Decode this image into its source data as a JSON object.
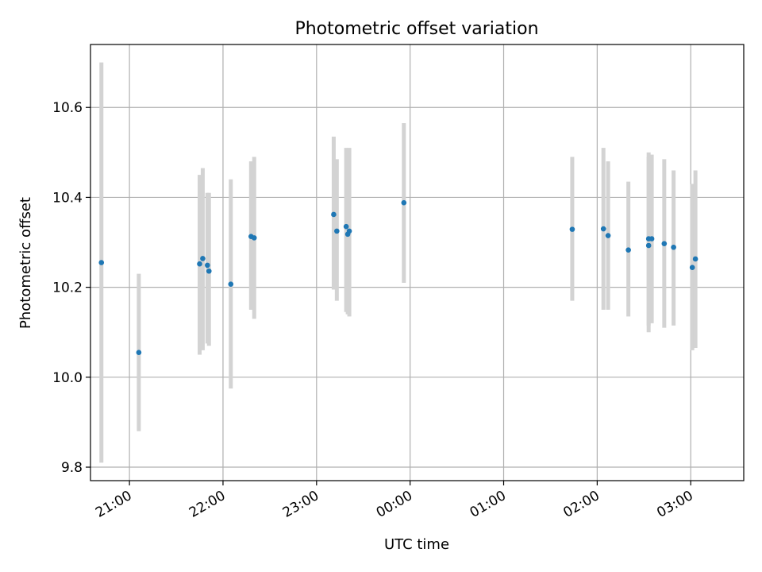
{
  "chart_data": {
    "type": "scatter",
    "title": "Photometric offset variation",
    "xlabel": "UTC time",
    "ylabel": "Photometric offset",
    "x_unit": "UTC",
    "xlim": [
      "20:35",
      "03:34"
    ],
    "ylim": [
      9.77,
      10.74
    ],
    "x_ticks": [
      "21:00",
      "22:00",
      "23:00",
      "00:00",
      "01:00",
      "02:00",
      "03:00"
    ],
    "y_ticks": [
      "9.8",
      "10.0",
      "10.2",
      "10.4",
      "10.6"
    ],
    "grid": true,
    "series": [
      {
        "marker_color": "#1f77b4",
        "errorbar_color": "#d3d3d3",
        "points": [
          {
            "x": "20:42",
            "y": 10.255,
            "ylo": 9.81,
            "yhi": 10.7
          },
          {
            "x": "21:06",
            "y": 10.055,
            "ylo": 9.88,
            "yhi": 10.23
          },
          {
            "x": "21:45",
            "y": 10.252,
            "ylo": 10.05,
            "yhi": 10.45
          },
          {
            "x": "21:47",
            "y": 10.264,
            "ylo": 10.06,
            "yhi": 10.465
          },
          {
            "x": "21:50",
            "y": 10.249,
            "ylo": 10.075,
            "yhi": 10.41
          },
          {
            "x": "21:51",
            "y": 10.236,
            "ylo": 10.07,
            "yhi": 10.41
          },
          {
            "x": "22:05",
            "y": 10.207,
            "ylo": 9.975,
            "yhi": 10.44
          },
          {
            "x": "22:18",
            "y": 10.313,
            "ylo": 10.15,
            "yhi": 10.48
          },
          {
            "x": "22:20",
            "y": 10.31,
            "ylo": 10.13,
            "yhi": 10.49
          },
          {
            "x": "23:11",
            "y": 10.362,
            "ylo": 10.195,
            "yhi": 10.535
          },
          {
            "x": "23:13",
            "y": 10.325,
            "ylo": 10.17,
            "yhi": 10.485
          },
          {
            "x": "23:19",
            "y": 10.335,
            "ylo": 10.145,
            "yhi": 10.51
          },
          {
            "x": "23:20",
            "y": 10.318,
            "ylo": 10.14,
            "yhi": 10.49
          },
          {
            "x": "23:21",
            "y": 10.325,
            "ylo": 10.135,
            "yhi": 10.51
          },
          {
            "x": "23:56",
            "y": 10.388,
            "ylo": 10.21,
            "yhi": 10.565
          },
          {
            "x": "01:44",
            "y": 10.329,
            "ylo": 10.17,
            "yhi": 10.49
          },
          {
            "x": "02:04",
            "y": 10.33,
            "ylo": 10.15,
            "yhi": 10.51
          },
          {
            "x": "02:07",
            "y": 10.315,
            "ylo": 10.15,
            "yhi": 10.48
          },
          {
            "x": "02:20",
            "y": 10.283,
            "ylo": 10.135,
            "yhi": 10.435
          },
          {
            "x": "02:33",
            "y": 10.308,
            "ylo": 10.115,
            "yhi": 10.5
          },
          {
            "x": "02:33",
            "y": 10.293,
            "ylo": 10.1,
            "yhi": 10.49
          },
          {
            "x": "02:35",
            "y": 10.308,
            "ylo": 10.12,
            "yhi": 10.495
          },
          {
            "x": "02:43",
            "y": 10.297,
            "ylo": 10.11,
            "yhi": 10.485
          },
          {
            "x": "02:49",
            "y": 10.289,
            "ylo": 10.115,
            "yhi": 10.46
          },
          {
            "x": "03:01",
            "y": 10.244,
            "ylo": 10.06,
            "yhi": 10.43
          },
          {
            "x": "03:03",
            "y": 10.263,
            "ylo": 10.065,
            "yhi": 10.46
          }
        ]
      }
    ]
  }
}
